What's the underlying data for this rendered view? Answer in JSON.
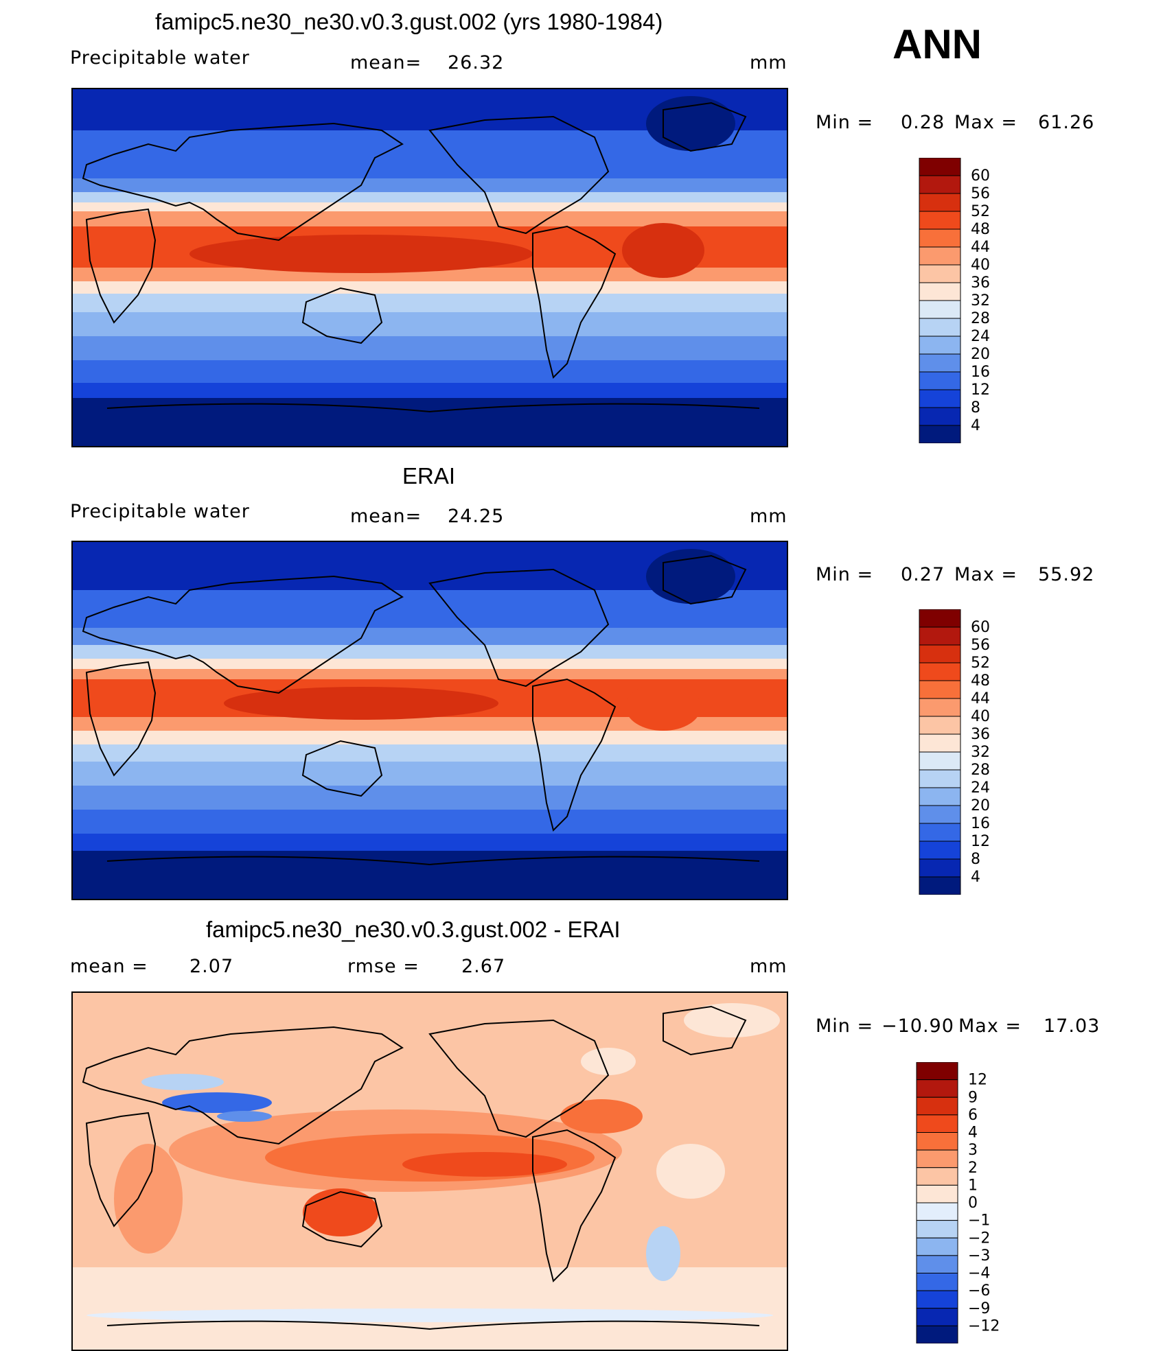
{
  "season": "ANN",
  "chart_data": [
    {
      "type": "heatmap",
      "title": "famipc5.ne30_ne30.v0.3.gust.002 (yrs 1980-1984)",
      "variable": "Precipitable water",
      "mean_label": "mean=",
      "mean": "26.32",
      "units": "mm",
      "min_label": "Min  =",
      "min": "0.28",
      "max_label": "Max  =",
      "max": "61.26",
      "colorbar": {
        "labels": [
          "60",
          "56",
          "52",
          "48",
          "44",
          "40",
          "36",
          "32",
          "28",
          "24",
          "20",
          "16",
          "12",
          "8",
          "4"
        ],
        "colors": [
          "#7f0000",
          "#b2180e",
          "#d7300f",
          "#ef4a1c",
          "#f8703a",
          "#fb9a6e",
          "#fcc5a5",
          "#fde6d6",
          "#dbe9f6",
          "#b7d3f4",
          "#8cb5f0",
          "#5f8fea",
          "#3468e6",
          "#1543d9",
          "#0727b2",
          "#001a7d"
        ]
      }
    },
    {
      "type": "heatmap",
      "title": "ERAI",
      "variable": "Precipitable water",
      "mean_label": "mean=",
      "mean": "24.25",
      "units": "mm",
      "min_label": "Min  =",
      "min": "0.27",
      "max_label": "Max  =",
      "max": "55.92",
      "colorbar": {
        "labels": [
          "60",
          "56",
          "52",
          "48",
          "44",
          "40",
          "36",
          "32",
          "28",
          "24",
          "20",
          "16",
          "12",
          "8",
          "4"
        ],
        "colors": [
          "#7f0000",
          "#b2180e",
          "#d7300f",
          "#ef4a1c",
          "#f8703a",
          "#fb9a6e",
          "#fcc5a5",
          "#fde6d6",
          "#dbe9f6",
          "#b7d3f4",
          "#8cb5f0",
          "#5f8fea",
          "#3468e6",
          "#1543d9",
          "#0727b2",
          "#001a7d"
        ]
      }
    },
    {
      "type": "heatmap",
      "title": "famipc5.ne30_ne30.v0.3.gust.002 - ERAI",
      "mean_label": "mean  =",
      "mean": "2.07",
      "rmse_label": "rmse  =",
      "rmse": "2.67",
      "units": "mm",
      "min_label": "Min  =",
      "min": "−10.90",
      "max_label": "Max  =",
      "max": "17.03",
      "colorbar": {
        "labels": [
          "12",
          "9",
          "6",
          "4",
          "3",
          "2",
          "1",
          "0",
          "−1",
          "−2",
          "−3",
          "−4",
          "−6",
          "−9",
          "−12"
        ],
        "colors": [
          "#7f0000",
          "#b2180e",
          "#d7300f",
          "#ef4a1c",
          "#f8703a",
          "#fb9a6e",
          "#fcc5a5",
          "#fde6d6",
          "#e3eefc",
          "#b7d3f4",
          "#8cb5f0",
          "#5f8fea",
          "#3468e6",
          "#1543d9",
          "#0727b2",
          "#001a7d"
        ]
      }
    }
  ]
}
